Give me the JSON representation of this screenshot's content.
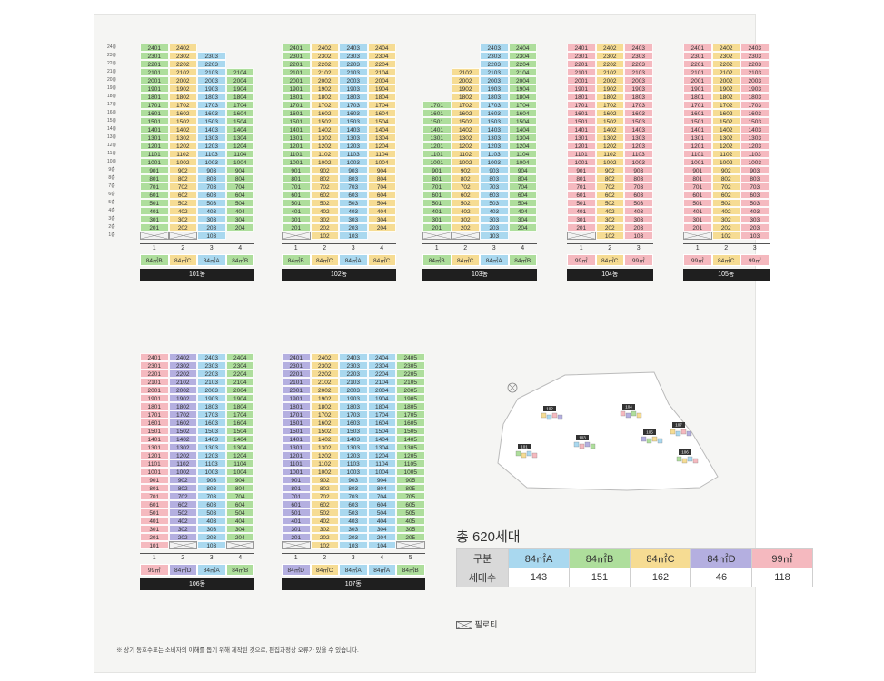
{
  "colors": {
    "84A": "#a9d8ef",
    "84B": "#aede9c",
    "84C": "#f6dc93",
    "84D": "#b4afe0",
    "99": "#f5b9bf",
    "pilotis": "#f2f2f2"
  },
  "floor_labels": [
    "24층",
    "23층",
    "22층",
    "21층",
    "20층",
    "19층",
    "18층",
    "17층",
    "16층",
    "15층",
    "14층",
    "13층",
    "12층",
    "11층",
    "10층",
    "9층",
    "8층",
    "7층",
    "6층",
    "5층",
    "4층",
    "3층",
    "2층",
    "1층"
  ],
  "buildings": [
    {
      "name": "101동",
      "lines": [
        "1",
        "2",
        "3",
        "4"
      ],
      "types": [
        "84㎡B",
        "84㎡C",
        "84㎡A",
        "84㎡B"
      ],
      "columns": [
        {
          "cls": "tB",
          "top": 24,
          "bottom": 2,
          "pilotis": true,
          "pilot_label": ""
        },
        {
          "cls": "tC",
          "top": 24,
          "bottom": 2,
          "pilotis": true,
          "pilot_label": ""
        },
        {
          "cls": "tA",
          "top": 23,
          "bottom": 1,
          "pilotis": false
        },
        {
          "cls": "tB",
          "top": 21,
          "bottom": 2,
          "pilotis": false
        }
      ]
    },
    {
      "name": "102동",
      "lines": [
        "1",
        "2",
        "3",
        "4"
      ],
      "types": [
        "84㎡B",
        "84㎡C",
        "84㎡A",
        "84㎡C"
      ],
      "columns": [
        {
          "cls": "tB",
          "top": 24,
          "bottom": 2,
          "pilotis": true,
          "pilot_label": ""
        },
        {
          "cls": "tC",
          "top": 24,
          "bottom": 1,
          "pilotis": false
        },
        {
          "cls": "tA",
          "top": 24,
          "bottom": 1,
          "pilotis": false
        },
        {
          "cls": "tC",
          "top": 24,
          "bottom": 2,
          "pilotis": false
        }
      ]
    },
    {
      "name": "103동",
      "lines": [
        "1",
        "2",
        "3",
        "4"
      ],
      "types": [
        "84㎡B",
        "84㎡C",
        "84㎡A",
        "84㎡B"
      ],
      "columns": [
        {
          "cls": "tB",
          "top": 17,
          "bottom": 2,
          "pilotis": true,
          "pilot_label": ""
        },
        {
          "cls": "tC",
          "top": 21,
          "bottom": 2,
          "pilotis": true,
          "pilot_label": ""
        },
        {
          "cls": "tA",
          "top": 24,
          "bottom": 1,
          "pilotis": false
        },
        {
          "cls": "tB",
          "top": 24,
          "bottom": 2,
          "pilotis": false
        }
      ]
    },
    {
      "name": "104동",
      "lines": [
        "1",
        "2",
        "3"
      ],
      "types": [
        "99㎡",
        "84㎡C",
        "99㎡"
      ],
      "columns": [
        {
          "cls": "t99",
          "top": 24,
          "bottom": 2,
          "pilotis": true,
          "pilot_label": ""
        },
        {
          "cls": "tC",
          "top": 24,
          "bottom": 1,
          "pilotis": false
        },
        {
          "cls": "t99",
          "top": 24,
          "bottom": 1,
          "pilotis": false
        }
      ]
    },
    {
      "name": "105동",
      "lines": [
        "1",
        "2",
        "3"
      ],
      "types": [
        "99㎡",
        "84㎡C",
        "99㎡"
      ],
      "columns": [
        {
          "cls": "t99",
          "top": 24,
          "bottom": 2,
          "pilotis": true,
          "pilot_label": ""
        },
        {
          "cls": "tC",
          "top": 24,
          "bottom": 1,
          "pilotis": false
        },
        {
          "cls": "t99",
          "top": 24,
          "bottom": 1,
          "pilotis": false
        }
      ]
    },
    {
      "name": "106동",
      "lines": [
        "1",
        "2",
        "3",
        "4"
      ],
      "types": [
        "99㎡",
        "84㎡D",
        "84㎡A",
        "84㎡B"
      ],
      "columns": [
        {
          "cls": "t99",
          "top": 24,
          "bottom": 1,
          "pilotis": false
        },
        {
          "cls": "tD",
          "top": 24,
          "bottom": 2,
          "pilotis": true,
          "pilot_label": ""
        },
        {
          "cls": "tA",
          "top": 24,
          "bottom": 1,
          "pilotis": false
        },
        {
          "cls": "tB",
          "top": 24,
          "bottom": 2,
          "pilotis": true,
          "pilot_label": ""
        }
      ]
    },
    {
      "name": "107동",
      "lines": [
        "1",
        "2",
        "3",
        "4",
        "5"
      ],
      "types": [
        "84㎡D",
        "84㎡C",
        "84㎡A",
        "84㎡A",
        "84㎡B"
      ],
      "columns": [
        {
          "cls": "tD",
          "top": 24,
          "bottom": 2,
          "pilotis": true,
          "pilot_label": ""
        },
        {
          "cls": "tC",
          "top": 24,
          "bottom": 1,
          "pilotis": false
        },
        {
          "cls": "tA",
          "top": 24,
          "bottom": 1,
          "pilotis": false
        },
        {
          "cls": "tA",
          "top": 24,
          "bottom": 1,
          "pilotis": false
        },
        {
          "cls": "tB",
          "top": 24,
          "bottom": 2,
          "pilotis": true,
          "pilot_label": ""
        }
      ]
    }
  ],
  "map_labels": [
    "101",
    "102",
    "103",
    "104",
    "105",
    "106",
    "107"
  ],
  "total_label": "총 620세대",
  "summary": {
    "header_label": "구분",
    "count_label": "세대수",
    "types": [
      {
        "name": "84㎡A",
        "count": "143",
        "color": "#a9d8ef"
      },
      {
        "name": "84㎡B",
        "count": "151",
        "color": "#aede9c"
      },
      {
        "name": "84㎡C",
        "count": "162",
        "color": "#f6dc93"
      },
      {
        "name": "84㎡D",
        "count": "46",
        "color": "#b4afe0"
      },
      {
        "name": "99㎡",
        "count": "118",
        "color": "#f5b9bf"
      }
    ]
  },
  "legend_label": "필로티",
  "note": "※ 상기 동호수표는 소비자의 이해를 돕기 위해 제작된 것으로, 편집과정상 오류가 있을 수 있습니다."
}
